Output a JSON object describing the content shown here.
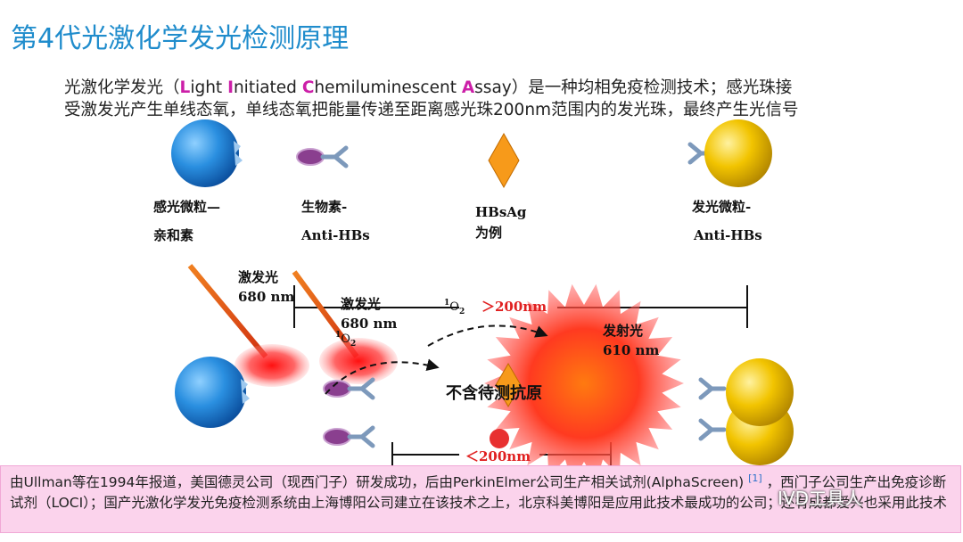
{
  "title": "第4代光激化学发光检测原理",
  "intro": [
    "光激化学发光（",
    "L",
    "ight ",
    "I",
    "nitiated ",
    "C",
    "hemiluminescent ",
    "A",
    "ssay）是一种均相免疫检测技术；感光珠接受激发光产生单线态氧，单线态氧把能量传递至距离感光珠200nm范围内的发光珠，最终产生光信号"
  ],
  "components": [
    {
      "line1": "感光微粒—",
      "line2": "亲和素"
    },
    {
      "line1": "生物素-",
      "line2": "Anti-HBs"
    },
    {
      "line1": "HBsAg",
      "line2": "为例"
    },
    {
      "line1": "发光微粒-",
      "line2": "Anti-HBs"
    }
  ],
  "excitation_1": {
    "line1": "激发光",
    "line2": "680 nm"
  },
  "excitation_2": {
    "line1": "激发光",
    "line2": "680 nm"
  },
  "singlet_oxygen": {
    "sup": "1",
    "base": "O",
    "sub": "2"
  },
  "far_distance": "＞200nm",
  "near_distance": "＜200nm",
  "emission": {
    "line1": "发射光",
    "line2": "610 nm"
  },
  "no_antigen": "不含待测抗原",
  "footer": {
    "before_ref": "由Ullman等在1994年报道，美国德灵公司（现西门子）研发成功，后由PerkinElmer公司生产相关试剂(AlphaScreen) ",
    "ref": "[1]",
    "after_ref": " ，西门子公司生产出免疫诊断试剂（LOCI）；国产光激化学发光免疫检测系统由上海博阳公司建立在该技术之上，北京科美博阳是应用此技术最成功的公司；还有成都爱兴也采用此技术"
  },
  "watermark": "IVD工具人"
}
